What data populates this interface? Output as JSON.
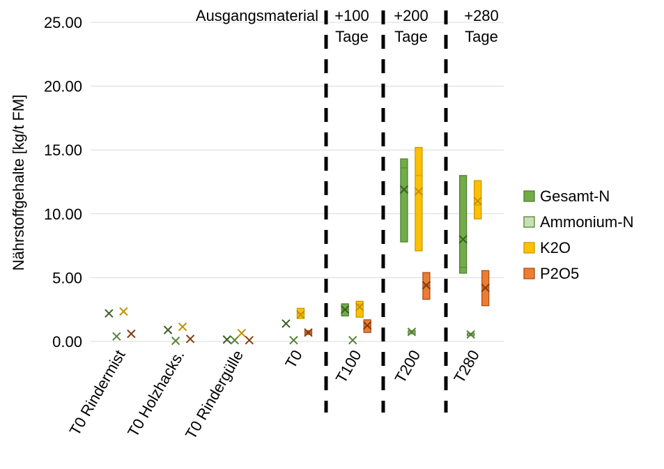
{
  "chart_data": {
    "type": "box",
    "ylabel": "Nährstoffgehalte [kg/t FM]",
    "ylim": [
      0,
      25
    ],
    "yticks": [
      "0.00",
      "5.00",
      "10.00",
      "15.00",
      "20.00",
      "25.00"
    ],
    "grid": true,
    "legend_position": "right",
    "categories": [
      "T0 Rindermist",
      "T0 Holzhacks.",
      "T0 Rindergülle",
      "T0",
      "T100",
      "T200",
      "T280"
    ],
    "annotations": [
      {
        "text": "Ausgangsmaterial",
        "after_category": "T0"
      },
      {
        "text": "+100\nTage",
        "line1": "+100",
        "line2": "Tage"
      },
      {
        "text": "+200\nTage",
        "line1": "+200",
        "line2": "Tage"
      },
      {
        "text": "+280\nTage",
        "line1": "+280",
        "line2": "Tage"
      }
    ],
    "series": [
      {
        "name": "Gesamt-N",
        "color": "#70AD47",
        "edge": "#507E32",
        "mark": "#3B5E24",
        "values": [
          {
            "min": 2.2,
            "max": 2.2,
            "median": 2.2,
            "mean": 2.2
          },
          {
            "min": 0.9,
            "max": 0.9,
            "median": 0.9,
            "mean": 0.9
          },
          {
            "min": 0.15,
            "max": 0.15,
            "median": 0.15,
            "mean": 0.15
          },
          {
            "min": 1.4,
            "max": 1.4,
            "median": 1.4,
            "mean": 1.4
          },
          {
            "min": 2.0,
            "max": 2.95,
            "median": 2.5,
            "mean": 2.5
          },
          {
            "min": 7.8,
            "max": 14.3,
            "median": 13.6,
            "mean": 11.9
          },
          {
            "min": 5.35,
            "max": 13.0,
            "median": 5.8,
            "mean": 8.0
          }
        ]
      },
      {
        "name": "Ammonium-N",
        "color": "#C5E0B4",
        "edge": "#548235",
        "mark": "#548235",
        "values": [
          {
            "min": 0.4,
            "max": 0.4,
            "median": 0.4,
            "mean": 0.4
          },
          {
            "min": 0.05,
            "max": 0.05,
            "median": 0.05,
            "mean": 0.05
          },
          {
            "min": 0.1,
            "max": 0.1,
            "median": 0.1,
            "mean": 0.1
          },
          {
            "min": 0.1,
            "max": 0.1,
            "median": 0.1,
            "mean": 0.1
          },
          {
            "min": 0.1,
            "max": 0.1,
            "median": 0.1,
            "mean": 0.1
          },
          {
            "min": 0.6,
            "max": 0.85,
            "median": 0.75,
            "mean": 0.75
          },
          {
            "min": 0.45,
            "max": 0.65,
            "median": 0.55,
            "mean": 0.55
          }
        ]
      },
      {
        "name": "K2O",
        "color": "#FFC000",
        "edge": "#C99700",
        "mark": "#BF9000",
        "values": [
          {
            "min": 2.35,
            "max": 2.35,
            "median": 2.35,
            "mean": 2.35
          },
          {
            "min": 1.15,
            "max": 1.15,
            "median": 1.15,
            "mean": 1.15
          },
          {
            "min": 0.65,
            "max": 0.65,
            "median": 0.65,
            "mean": 0.65
          },
          {
            "min": 1.8,
            "max": 2.6,
            "median": 2.2,
            "mean": 2.1
          },
          {
            "min": 1.9,
            "max": 3.15,
            "median": 2.9,
            "mean": 2.7
          },
          {
            "min": 7.1,
            "max": 15.2,
            "median": 13.0,
            "mean": 11.75
          },
          {
            "min": 9.6,
            "max": 12.6,
            "median": 10.7,
            "mean": 11.0
          }
        ]
      },
      {
        "name": "P2O5",
        "color": "#ED7D31",
        "edge": "#A5501B",
        "mark": "#843C0C",
        "values": [
          {
            "min": 0.6,
            "max": 0.6,
            "median": 0.6,
            "mean": 0.6
          },
          {
            "min": 0.2,
            "max": 0.2,
            "median": 0.2,
            "mean": 0.2
          },
          {
            "min": 0.1,
            "max": 0.1,
            "median": 0.1,
            "mean": 0.1
          },
          {
            "min": 0.55,
            "max": 0.85,
            "median": 0.7,
            "mean": 0.7
          },
          {
            "min": 0.7,
            "max": 1.7,
            "median": 1.2,
            "mean": 1.25
          },
          {
            "min": 3.3,
            "max": 5.4,
            "median": 4.4,
            "mean": 4.4
          },
          {
            "min": 2.8,
            "max": 5.55,
            "median": 4.2,
            "mean": 4.2
          }
        ]
      }
    ]
  }
}
